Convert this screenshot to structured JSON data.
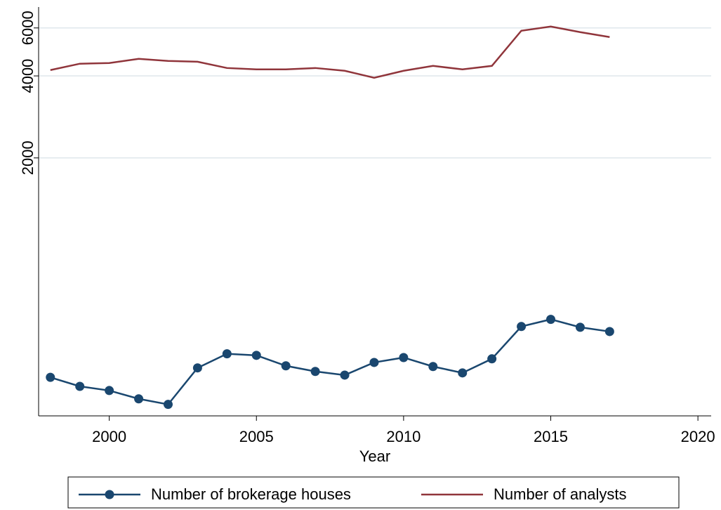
{
  "chart_data": {
    "type": "line",
    "x_label": "Year",
    "x": [
      1998,
      1999,
      2000,
      2001,
      2002,
      2003,
      2004,
      2005,
      2006,
      2007,
      2008,
      2009,
      2010,
      2011,
      2012,
      2013,
      2014,
      2015,
      2016,
      2017
    ],
    "series": [
      {
        "name": "Number of brokerage houses",
        "color": "#1a476f",
        "marker": true,
        "values": [
          313,
          290,
          280,
          261,
          249,
          339,
          382,
          377,
          345,
          329,
          319,
          355,
          370,
          343,
          325,
          366,
          481,
          511,
          478,
          461
        ]
      },
      {
        "name": "Number of analysts",
        "color": "#90353b",
        "marker": false,
        "values": [
          4202,
          4434,
          4460,
          4620,
          4540,
          4510,
          4276,
          4227,
          4227,
          4276,
          4178,
          3937,
          4178,
          4354,
          4227,
          4354,
          5860,
          6072,
          5790,
          5554
        ]
      }
    ],
    "xlim": [
      1997.6,
      2020.45
    ],
    "xticks": [
      2000,
      2005,
      2010,
      2015,
      2020
    ],
    "ylim": [
      226,
      7160
    ],
    "yticks": [
      2000,
      4000,
      6000
    ],
    "ylog": true,
    "grid": true,
    "legend": "bottom"
  }
}
